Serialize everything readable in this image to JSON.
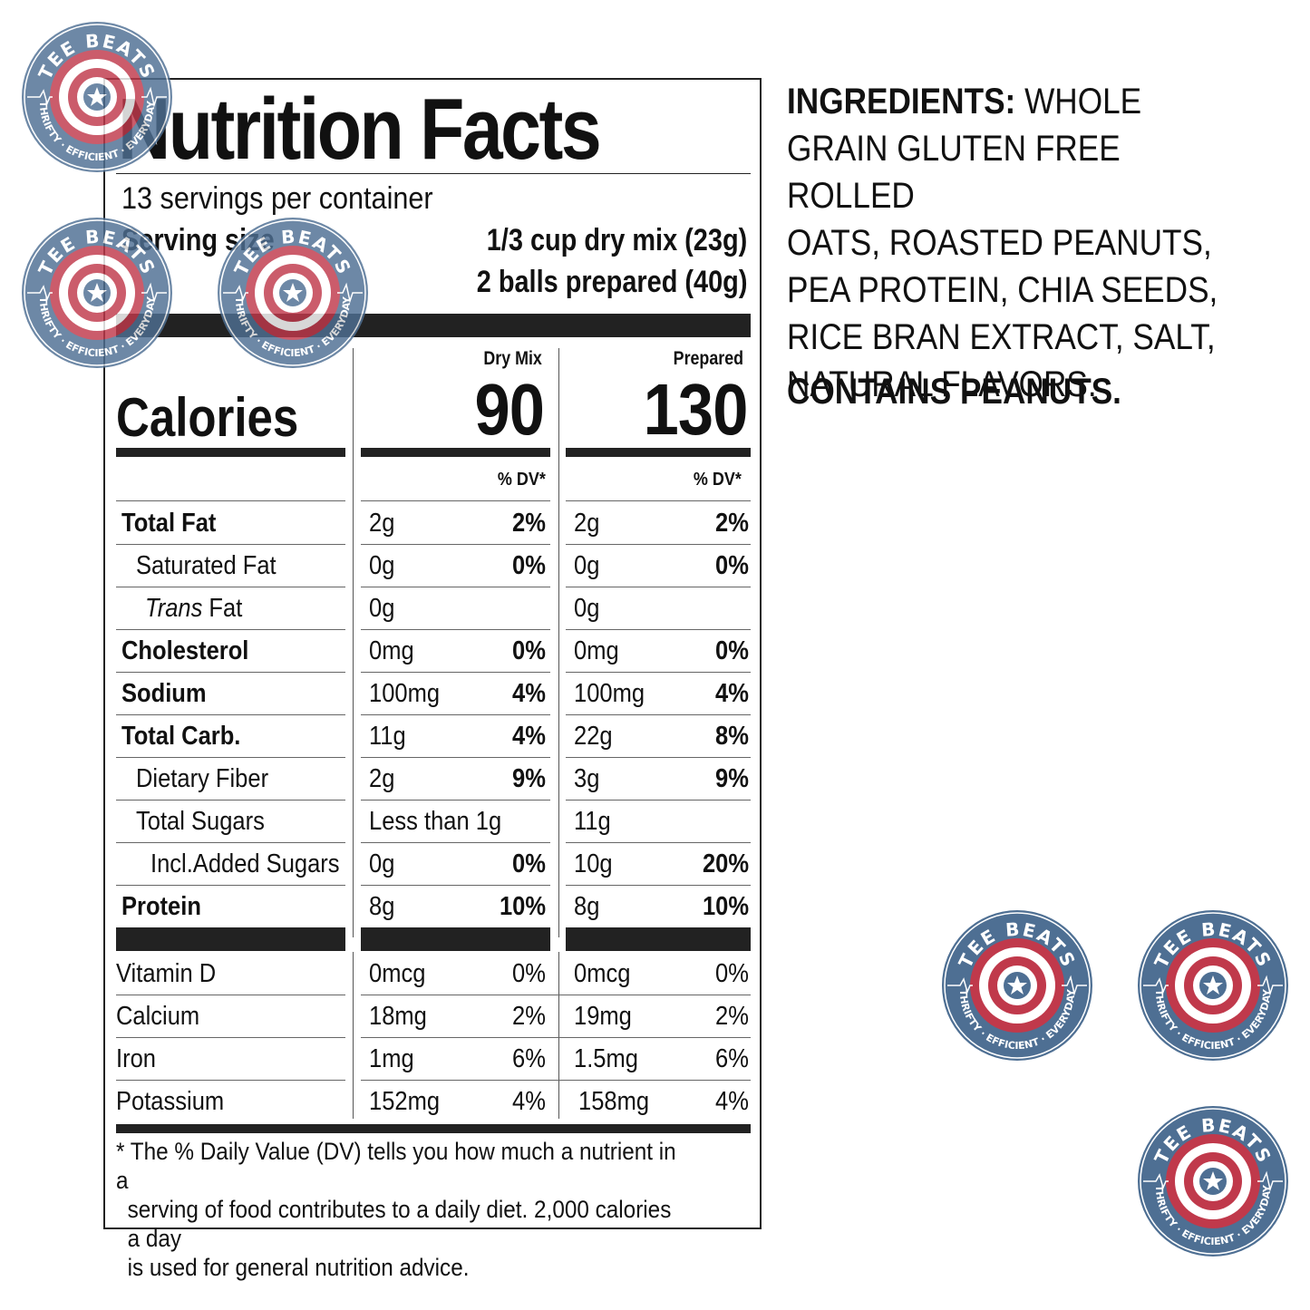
{
  "label": {
    "title": "Nutrition Facts",
    "servings_per_container": "13 servings per container",
    "serving_size_label": "Serving size",
    "serving_size_dry": "1/3 cup dry mix (23g)",
    "serving_size_prepared": "2 balls prepared (40g)",
    "columns": {
      "dry": "Dry Mix",
      "prepared": "Prepared"
    },
    "calories_label": "Calories",
    "calories_dry": "90",
    "calories_prepared": "130",
    "dv_header": "% DV*",
    "nutrients": [
      {
        "name": "Total Fat",
        "emph": "",
        "dry_amt": "2g",
        "dry_pct": "2%",
        "prep_amt": "2g",
        "prep_pct": "2%"
      },
      {
        "name": "Saturated Fat",
        "emph": "",
        "dry_amt": "0g",
        "dry_pct": "0%",
        "prep_amt": "0g",
        "prep_pct": "0%"
      },
      {
        "name": " Fat",
        "emph": "Trans",
        "dry_amt": "0g",
        "dry_pct": "",
        "prep_amt": "0g",
        "prep_pct": ""
      },
      {
        "name": "Cholesterol",
        "emph": "",
        "dry_amt": "0mg",
        "dry_pct": "0%",
        "prep_amt": "0mg",
        "prep_pct": "0%"
      },
      {
        "name": "Sodium",
        "emph": "",
        "dry_amt": "100mg",
        "dry_pct": "4%",
        "prep_amt": "100mg",
        "prep_pct": "4%"
      },
      {
        "name": "Total Carb.",
        "emph": "",
        "dry_amt": "11g",
        "dry_pct": "4%",
        "prep_amt": "22g",
        "prep_pct": "8%"
      },
      {
        "name": "Dietary Fiber",
        "emph": "",
        "dry_amt": "2g",
        "dry_pct": "9%",
        "prep_amt": "3g",
        "prep_pct": "9%"
      },
      {
        "name": "Total Sugars",
        "emph": "",
        "dry_amt": "Less than 1g",
        "dry_pct": "",
        "prep_amt": "11g",
        "prep_pct": ""
      },
      {
        "name": "Incl.Added Sugars",
        "emph": "",
        "dry_amt": "0g",
        "dry_pct": "0%",
        "prep_amt": "10g",
        "prep_pct": "20%"
      },
      {
        "name": "Protein",
        "emph": "",
        "dry_amt": "8g",
        "dry_pct": "10%",
        "prep_amt": "8g",
        "prep_pct": "10%"
      }
    ],
    "vitamins": [
      {
        "name": "Vitamin D",
        "dry_amt": "0mcg",
        "dry_pct": "0%",
        "prep_amt": "0mcg",
        "prep_pct": "0%"
      },
      {
        "name": "Calcium",
        "dry_amt": "18mg",
        "dry_pct": "2%",
        "prep_amt": "19mg",
        "prep_pct": "2%"
      },
      {
        "name": "Iron",
        "dry_amt": "1mg",
        "dry_pct": "6%",
        "prep_amt": "1.5mg",
        "prep_pct": "6%"
      },
      {
        "name": "Potassium",
        "dry_amt": "152mg",
        "dry_pct": "4%",
        "prep_amt": "158mg",
        "prep_pct": "4%"
      }
    ],
    "footnote": [
      "* The % Daily Value (DV) tells you how much a nutrient in a",
      "serving of food contributes to a daily diet. 2,000 calories a day",
      "is used for general nutrition advice."
    ]
  },
  "ingredients": {
    "heading": "INGREDIENTS:",
    "lines": [
      " WHOLE",
      "GRAIN GLUTEN FREE ROLLED",
      "OATS, ROASTED PEANUTS,",
      "PEA PROTEIN, CHIA SEEDS,",
      "RICE BRAN EXTRACT, SALT,",
      "NATURAL FLAVORS."
    ],
    "contains": "CONTAINS PEANUTS."
  },
  "watermark": {
    "brand": "TEE BEATS",
    "tagline": "THRIFTY · EFFICIENT · EVERYDAY",
    "colors": {
      "ring": "#4e6f93",
      "red": "#c0394b",
      "white": "#ffffff"
    }
  }
}
